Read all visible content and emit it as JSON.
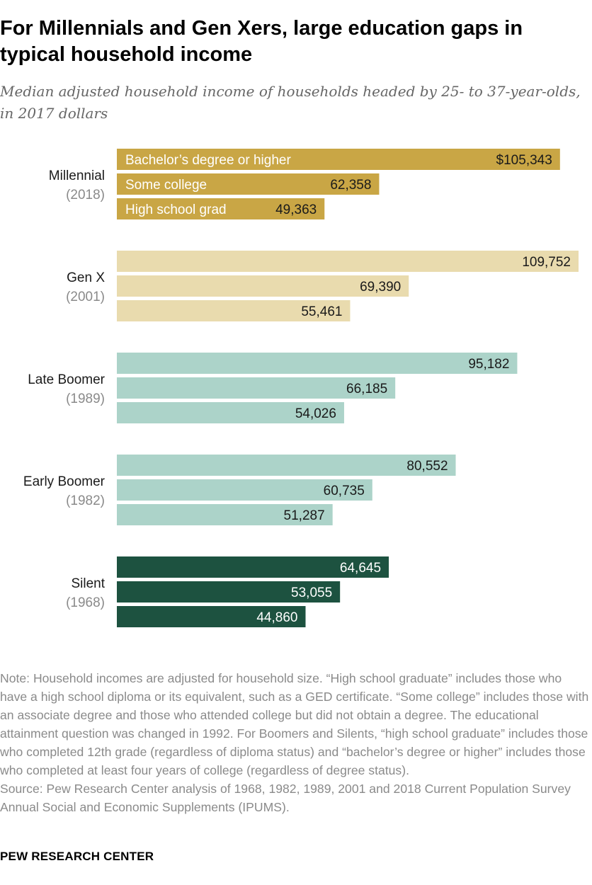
{
  "title": "For Millennials and Gen Xers, large education gaps in typical household income",
  "subtitle": "Median adjusted household income of households headed by 25- to 37-year-olds, in 2017 dollars",
  "chart_data": {
    "type": "bar",
    "orientation": "horizontal",
    "xlim": [
      0,
      109752
    ],
    "series_labels": [
      "Bachelor’s degree or higher",
      "Some college",
      "High school grad"
    ],
    "groups": [
      {
        "name": "Millennial",
        "year": "(2018)",
        "color": "#c9a645",
        "text_color": "#1a1a1a",
        "label_color": "#ffffff",
        "values": [
          105343,
          62358,
          49363
        ],
        "value_labels": [
          "$105,343",
          "62,358",
          "49,363"
        ]
      },
      {
        "name": "Gen X",
        "year": "(2001)",
        "color": "#e9dbae",
        "text_color": "#1a1a1a",
        "values": [
          109752,
          69390,
          55461
        ],
        "value_labels": [
          "109,752",
          "69,390",
          "55,461"
        ]
      },
      {
        "name": "Late Boomer",
        "year": "(1989)",
        "color": "#acd3c9",
        "text_color": "#1a1a1a",
        "values": [
          95182,
          66185,
          54026
        ],
        "value_labels": [
          "95,182",
          "66,185",
          "54,026"
        ]
      },
      {
        "name": "Early Boomer",
        "year": "(1982)",
        "color": "#acd3c9",
        "text_color": "#1a1a1a",
        "values": [
          80552,
          60735,
          51287
        ],
        "value_labels": [
          "80,552",
          "60,735",
          "51,287"
        ]
      },
      {
        "name": "Silent",
        "year": "(1968)",
        "color": "#1d5240",
        "text_color": "#ffffff",
        "values": [
          64645,
          53055,
          44860
        ],
        "value_labels": [
          "64,645",
          "53,055",
          "44,860"
        ]
      }
    ]
  },
  "note": "Note: Household incomes are adjusted for household size. “High school graduate” includes those who have a high school diploma or its equivalent, such as a GED certificate. “Some college” includes those with an associate degree and those who attended college but did not obtain a degree. The educational attainment question was changed in 1992. For Boomers and Silents, “high school graduate” includes those who completed 12th grade (regardless of diploma status) and “bachelor’s degree or higher” includes those who completed at least four years of college (regardless of degree status).",
  "source": "Source: Pew Research Center analysis of 1968, 1982, 1989, 2001 and 2018 Current Population Survey Annual Social and Economic Supplements (IPUMS).",
  "brand": "PEW RESEARCH CENTER"
}
